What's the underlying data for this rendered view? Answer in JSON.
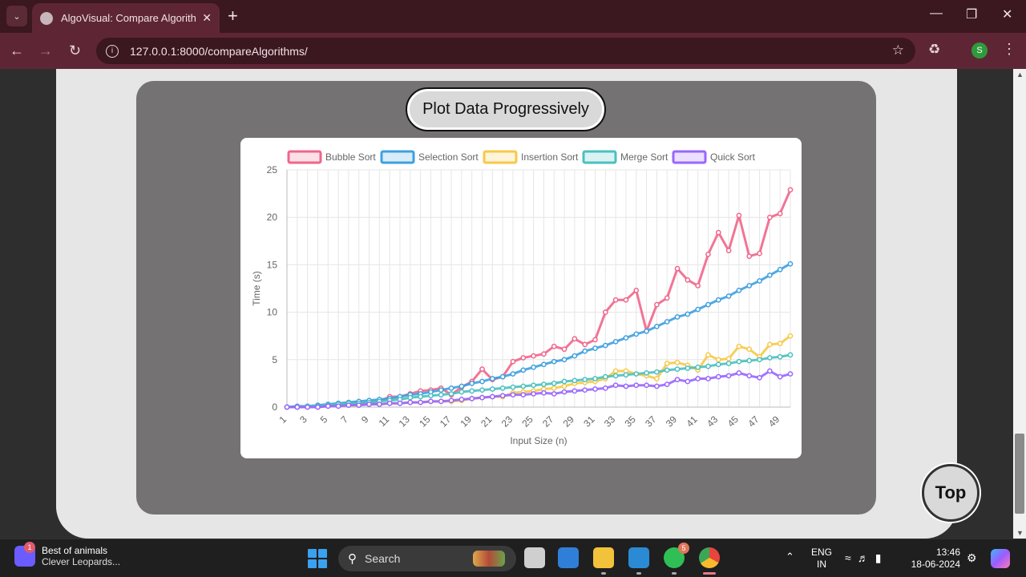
{
  "browser": {
    "tab_title": "AlgoVisual: Compare Algorithm",
    "url": "127.0.0.1:8000/compareAlgorithms/",
    "profile_initial": "S"
  },
  "page": {
    "plot_button_label": "Plot Data Progressively",
    "top_button_label": "Top"
  },
  "chart_data": {
    "type": "line",
    "xlabel": "Input Size (n)",
    "ylabel": "Time (s)",
    "ylim": [
      0,
      25
    ],
    "y_ticks": [
      "0",
      "5",
      "10",
      "15",
      "20",
      "25"
    ],
    "x": [
      1,
      2,
      3,
      4,
      5,
      6,
      7,
      8,
      9,
      10,
      11,
      12,
      13,
      14,
      15,
      16,
      17,
      18,
      19,
      20,
      21,
      22,
      23,
      24,
      25,
      26,
      27,
      28,
      29,
      30,
      31,
      32,
      33,
      34,
      35,
      36,
      37,
      38,
      39,
      40,
      41,
      42,
      43,
      44,
      45,
      46,
      47,
      48,
      49,
      50
    ],
    "x_tick_labels": [
      "1",
      "3",
      "5",
      "7",
      "9",
      "11",
      "13",
      "15",
      "17",
      "19",
      "21",
      "23",
      "25",
      "27",
      "29",
      "31",
      "33",
      "35",
      "37",
      "39",
      "41",
      "43",
      "45",
      "47",
      "49"
    ],
    "legend_position": "top",
    "grid": true,
    "series": [
      {
        "name": "Bubble Sort",
        "color": "#f0668a",
        "values": [
          0,
          0,
          0.1,
          0,
          0.1,
          0.3,
          0.4,
          0.5,
          0.4,
          0.6,
          1.1,
          1.1,
          1.4,
          1.7,
          1.8,
          2.0,
          1.3,
          2.1,
          2.7,
          4.0,
          2.9,
          3.2,
          4.8,
          5.2,
          5.4,
          5.6,
          6.4,
          6.1,
          7.2,
          6.6,
          7.1,
          10.0,
          11.3,
          11.3,
          12.3,
          8.0,
          10.8,
          11.5,
          14.6,
          13.4,
          12.8,
          16.1,
          18.4,
          16.5,
          20.2,
          15.9,
          16.2,
          20.0,
          20.4,
          22.9
        ]
      },
      {
        "name": "Selection Sort",
        "color": "#3fa0e0",
        "values": [
          0,
          0.1,
          0.1,
          0.2,
          0.3,
          0.4,
          0.5,
          0.6,
          0.7,
          0.8,
          0.9,
          1.1,
          1.3,
          1.4,
          1.6,
          1.8,
          2.0,
          2.2,
          2.5,
          2.7,
          3.0,
          3.2,
          3.5,
          3.9,
          4.2,
          4.5,
          4.8,
          5.0,
          5.4,
          5.9,
          6.2,
          6.5,
          6.9,
          7.3,
          7.7,
          8.0,
          8.5,
          9.0,
          9.5,
          9.8,
          10.3,
          10.8,
          11.3,
          11.7,
          12.3,
          12.8,
          13.3,
          13.9,
          14.5,
          15.1
        ]
      },
      {
        "name": "Insertion Sort",
        "color": "#f7c948",
        "values": [
          0,
          0,
          0,
          0,
          0.1,
          0.1,
          0.2,
          0.2,
          0.3,
          0.3,
          0.4,
          0.4,
          0.5,
          0.5,
          0.6,
          0.6,
          0.6,
          0.7,
          0.9,
          1.0,
          1.1,
          1.1,
          1.5,
          1.6,
          1.7,
          1.9,
          2.0,
          2.2,
          2.5,
          2.6,
          2.7,
          3.0,
          3.8,
          3.8,
          3.5,
          3.3,
          3.0,
          4.6,
          4.7,
          4.4,
          3.9,
          5.5,
          5.0,
          5.1,
          6.4,
          6.1,
          5.3,
          6.6,
          6.7,
          7.5
        ]
      },
      {
        "name": "Merge Sort",
        "color": "#4bc0c0",
        "values": [
          0,
          0,
          0.1,
          0.1,
          0.2,
          0.3,
          0.4,
          0.4,
          0.5,
          0.6,
          0.7,
          0.8,
          1.0,
          1.1,
          1.2,
          1.3,
          1.4,
          1.6,
          1.7,
          1.8,
          1.9,
          2.0,
          2.1,
          2.2,
          2.3,
          2.4,
          2.5,
          2.7,
          2.8,
          2.9,
          3.0,
          3.2,
          3.3,
          3.4,
          3.5,
          3.6,
          3.7,
          3.9,
          4.0,
          4.1,
          4.2,
          4.3,
          4.5,
          4.6,
          4.8,
          4.9,
          5.0,
          5.2,
          5.3,
          5.5
        ]
      },
      {
        "name": "Quick Sort",
        "color": "#9966ff",
        "values": [
          0,
          0,
          0,
          0,
          0.1,
          0.1,
          0.2,
          0.2,
          0.3,
          0.3,
          0.4,
          0.4,
          0.5,
          0.5,
          0.6,
          0.6,
          0.7,
          0.8,
          0.9,
          1.0,
          1.1,
          1.2,
          1.3,
          1.3,
          1.4,
          1.5,
          1.4,
          1.6,
          1.7,
          1.8,
          1.9,
          2.0,
          2.3,
          2.2,
          2.3,
          2.3,
          2.2,
          2.4,
          2.9,
          2.7,
          3.0,
          3.0,
          3.2,
          3.3,
          3.6,
          3.3,
          3.1,
          3.8,
          3.2,
          3.5
        ]
      }
    ]
  },
  "taskbar": {
    "widget_title": "Best of animals",
    "widget_subtitle": "Clever Leopards...",
    "widget_badge": "1",
    "search_label": "Search",
    "whatsapp_badge": "5",
    "lang_line1": "ENG",
    "lang_line2": "IN",
    "time": "13:46",
    "date": "18-06-2024"
  }
}
